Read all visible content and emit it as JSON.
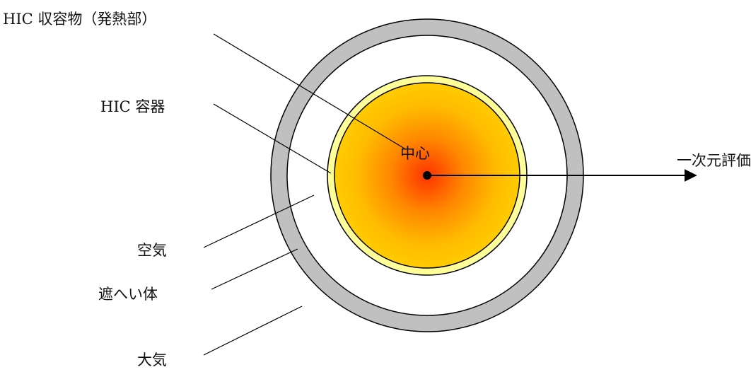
{
  "labels": {
    "contents": "HIC 収容物（発熱部）",
    "container": "HIC 容器",
    "air": "空気",
    "shield": "遮へい体",
    "atmosphere": "大気",
    "center": "中心",
    "evaluation": "一次元評価"
  },
  "colors": {
    "shield": "#c0c0c0",
    "container": "#ffff99",
    "contents_core": "#ff3300",
    "contents_mid": "#ff9900",
    "contents_edge": "#ffcc00",
    "line": "#000000"
  }
}
